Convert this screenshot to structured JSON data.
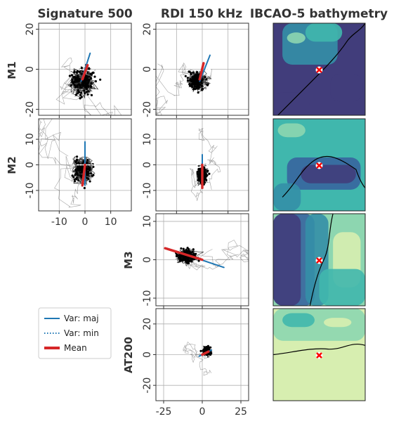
{
  "figure": {
    "column_titles": [
      "Signature 500",
      "RDI 150 kHz",
      "IBCAO-5 bathymetry"
    ],
    "row_labels": [
      "M1",
      "M2",
      "M3",
      "AT200"
    ]
  },
  "legend": {
    "placement": "lower-left",
    "items": [
      {
        "label": "Var: maj",
        "style": "solid",
        "color": "#1f77b4"
      },
      {
        "label": "Var: min",
        "style": "dotted",
        "color": "#1f77b4"
      },
      {
        "label": "Mean",
        "style": "thick",
        "color": "#d62728"
      }
    ]
  },
  "colors": {
    "trajectory": "#000000",
    "major_axis": "#1f77b4",
    "minor_axis": "#ffffff",
    "mean": "#d62728",
    "station_marker": "#ff0000",
    "grid": "#b0b0b0",
    "bathy_palette": [
      "#413d7b",
      "#37659e",
      "#348fa7",
      "#40b7ad",
      "#8dd6b0",
      "#d7eeb0"
    ]
  },
  "chart_data": [
    {
      "panel": "M1 Signature 500",
      "type": "scatter",
      "xlim": [
        -18,
        18
      ],
      "ylim": [
        -23,
        23
      ],
      "yticks": [
        -20,
        0,
        20
      ],
      "xticks": [],
      "grid": true,
      "cloud": {
        "center": [
          -1,
          -6
        ],
        "spread": [
          7,
          9
        ],
        "n": 420
      },
      "major_axis": [
        [
          -1.5,
          -6
        ],
        [
          2,
          8
        ]
      ],
      "minor_axis": [
        [
          -3,
          0
        ],
        [
          4,
          -1
        ]
      ],
      "mean": [
        [
          -1,
          -5
        ],
        [
          1,
          2
        ]
      ]
    },
    {
      "panel": "M1 RDI 150 kHz",
      "type": "scatter",
      "xlim": [
        -18,
        18
      ],
      "ylim": [
        -23,
        23
      ],
      "yticks": [
        -20,
        0,
        20
      ],
      "xticks": [],
      "grid": true,
      "cloud": {
        "center": [
          -2,
          -6
        ],
        "spread": [
          5,
          7
        ],
        "n": 380
      },
      "major_axis": [
        [
          -1,
          -6
        ],
        [
          3,
          7
        ]
      ],
      "minor_axis": [
        [
          -3,
          1
        ],
        [
          3,
          0
        ]
      ],
      "mean": [
        [
          -1,
          -5
        ],
        [
          0.5,
          3
        ]
      ]
    },
    {
      "panel": "M2 Signature 500",
      "type": "scatter",
      "xlim": [
        -18,
        18
      ],
      "ylim": [
        -18,
        18
      ],
      "yticks": [
        -10,
        0,
        10
      ],
      "xticks": [
        -10,
        0,
        10
      ],
      "grid": true,
      "cloud": {
        "center": [
          -1,
          -2
        ],
        "spread": [
          6,
          7
        ],
        "n": 420
      },
      "major_axis": [
        [
          0,
          -8
        ],
        [
          0,
          9
        ]
      ],
      "minor_axis": [
        [
          -3,
          0
        ],
        [
          4,
          0
        ]
      ],
      "mean": [
        [
          -1,
          -8
        ],
        [
          0,
          0
        ]
      ]
    },
    {
      "panel": "M2 RDI 150 kHz",
      "type": "scatter",
      "xlim": [
        -18,
        18
      ],
      "ylim": [
        -18,
        18
      ],
      "yticks": [
        -10,
        0,
        10
      ],
      "xticks": [],
      "grid": true,
      "cloud": {
        "center": [
          0,
          -4
        ],
        "spread": [
          3,
          5
        ],
        "n": 360
      },
      "major_axis": [
        [
          0,
          -9
        ],
        [
          0,
          4
        ]
      ],
      "minor_axis": [
        [
          -2,
          0
        ],
        [
          2,
          0
        ]
      ],
      "mean": [
        [
          0,
          -9
        ],
        [
          0,
          0
        ]
      ]
    },
    {
      "panel": "M3 RDI 150 kHz",
      "type": "scatter",
      "xlim": [
        -30,
        30
      ],
      "ylim": [
        -12,
        12
      ],
      "yticks": [
        -10,
        0,
        10
      ],
      "xticks": [],
      "grid": true,
      "cloud": {
        "center": [
          -10,
          1
        ],
        "spread": [
          10,
          2.5
        ],
        "n": 420
      },
      "major_axis": [
        [
          -23,
          3
        ],
        [
          14,
          -2
        ]
      ],
      "minor_axis": [
        [
          0,
          -1
        ],
        [
          0,
          1
        ]
      ],
      "mean": [
        [
          -24,
          3
        ],
        [
          0,
          0
        ]
      ]
    },
    {
      "panel": "AT200 RDI 150 kHz",
      "type": "scatter",
      "xlim": [
        -30,
        30
      ],
      "ylim": [
        -30,
        30
      ],
      "yticks": [
        -20,
        0,
        20
      ],
      "xticks": [
        -25,
        0,
        25
      ],
      "grid": true,
      "cloud": {
        "center": [
          3,
          2
        ],
        "spread": [
          4,
          4
        ],
        "n": 360
      },
      "major_axis": [
        [
          -2,
          -1
        ],
        [
          6,
          3
        ]
      ],
      "minor_axis": [
        [
          -1,
          1
        ],
        [
          1,
          -1
        ]
      ],
      "mean": [
        [
          0,
          0
        ],
        [
          4,
          2
        ]
      ]
    }
  ],
  "bathymetry_maps": [
    "M1",
    "M2",
    "M3",
    "AT200"
  ]
}
